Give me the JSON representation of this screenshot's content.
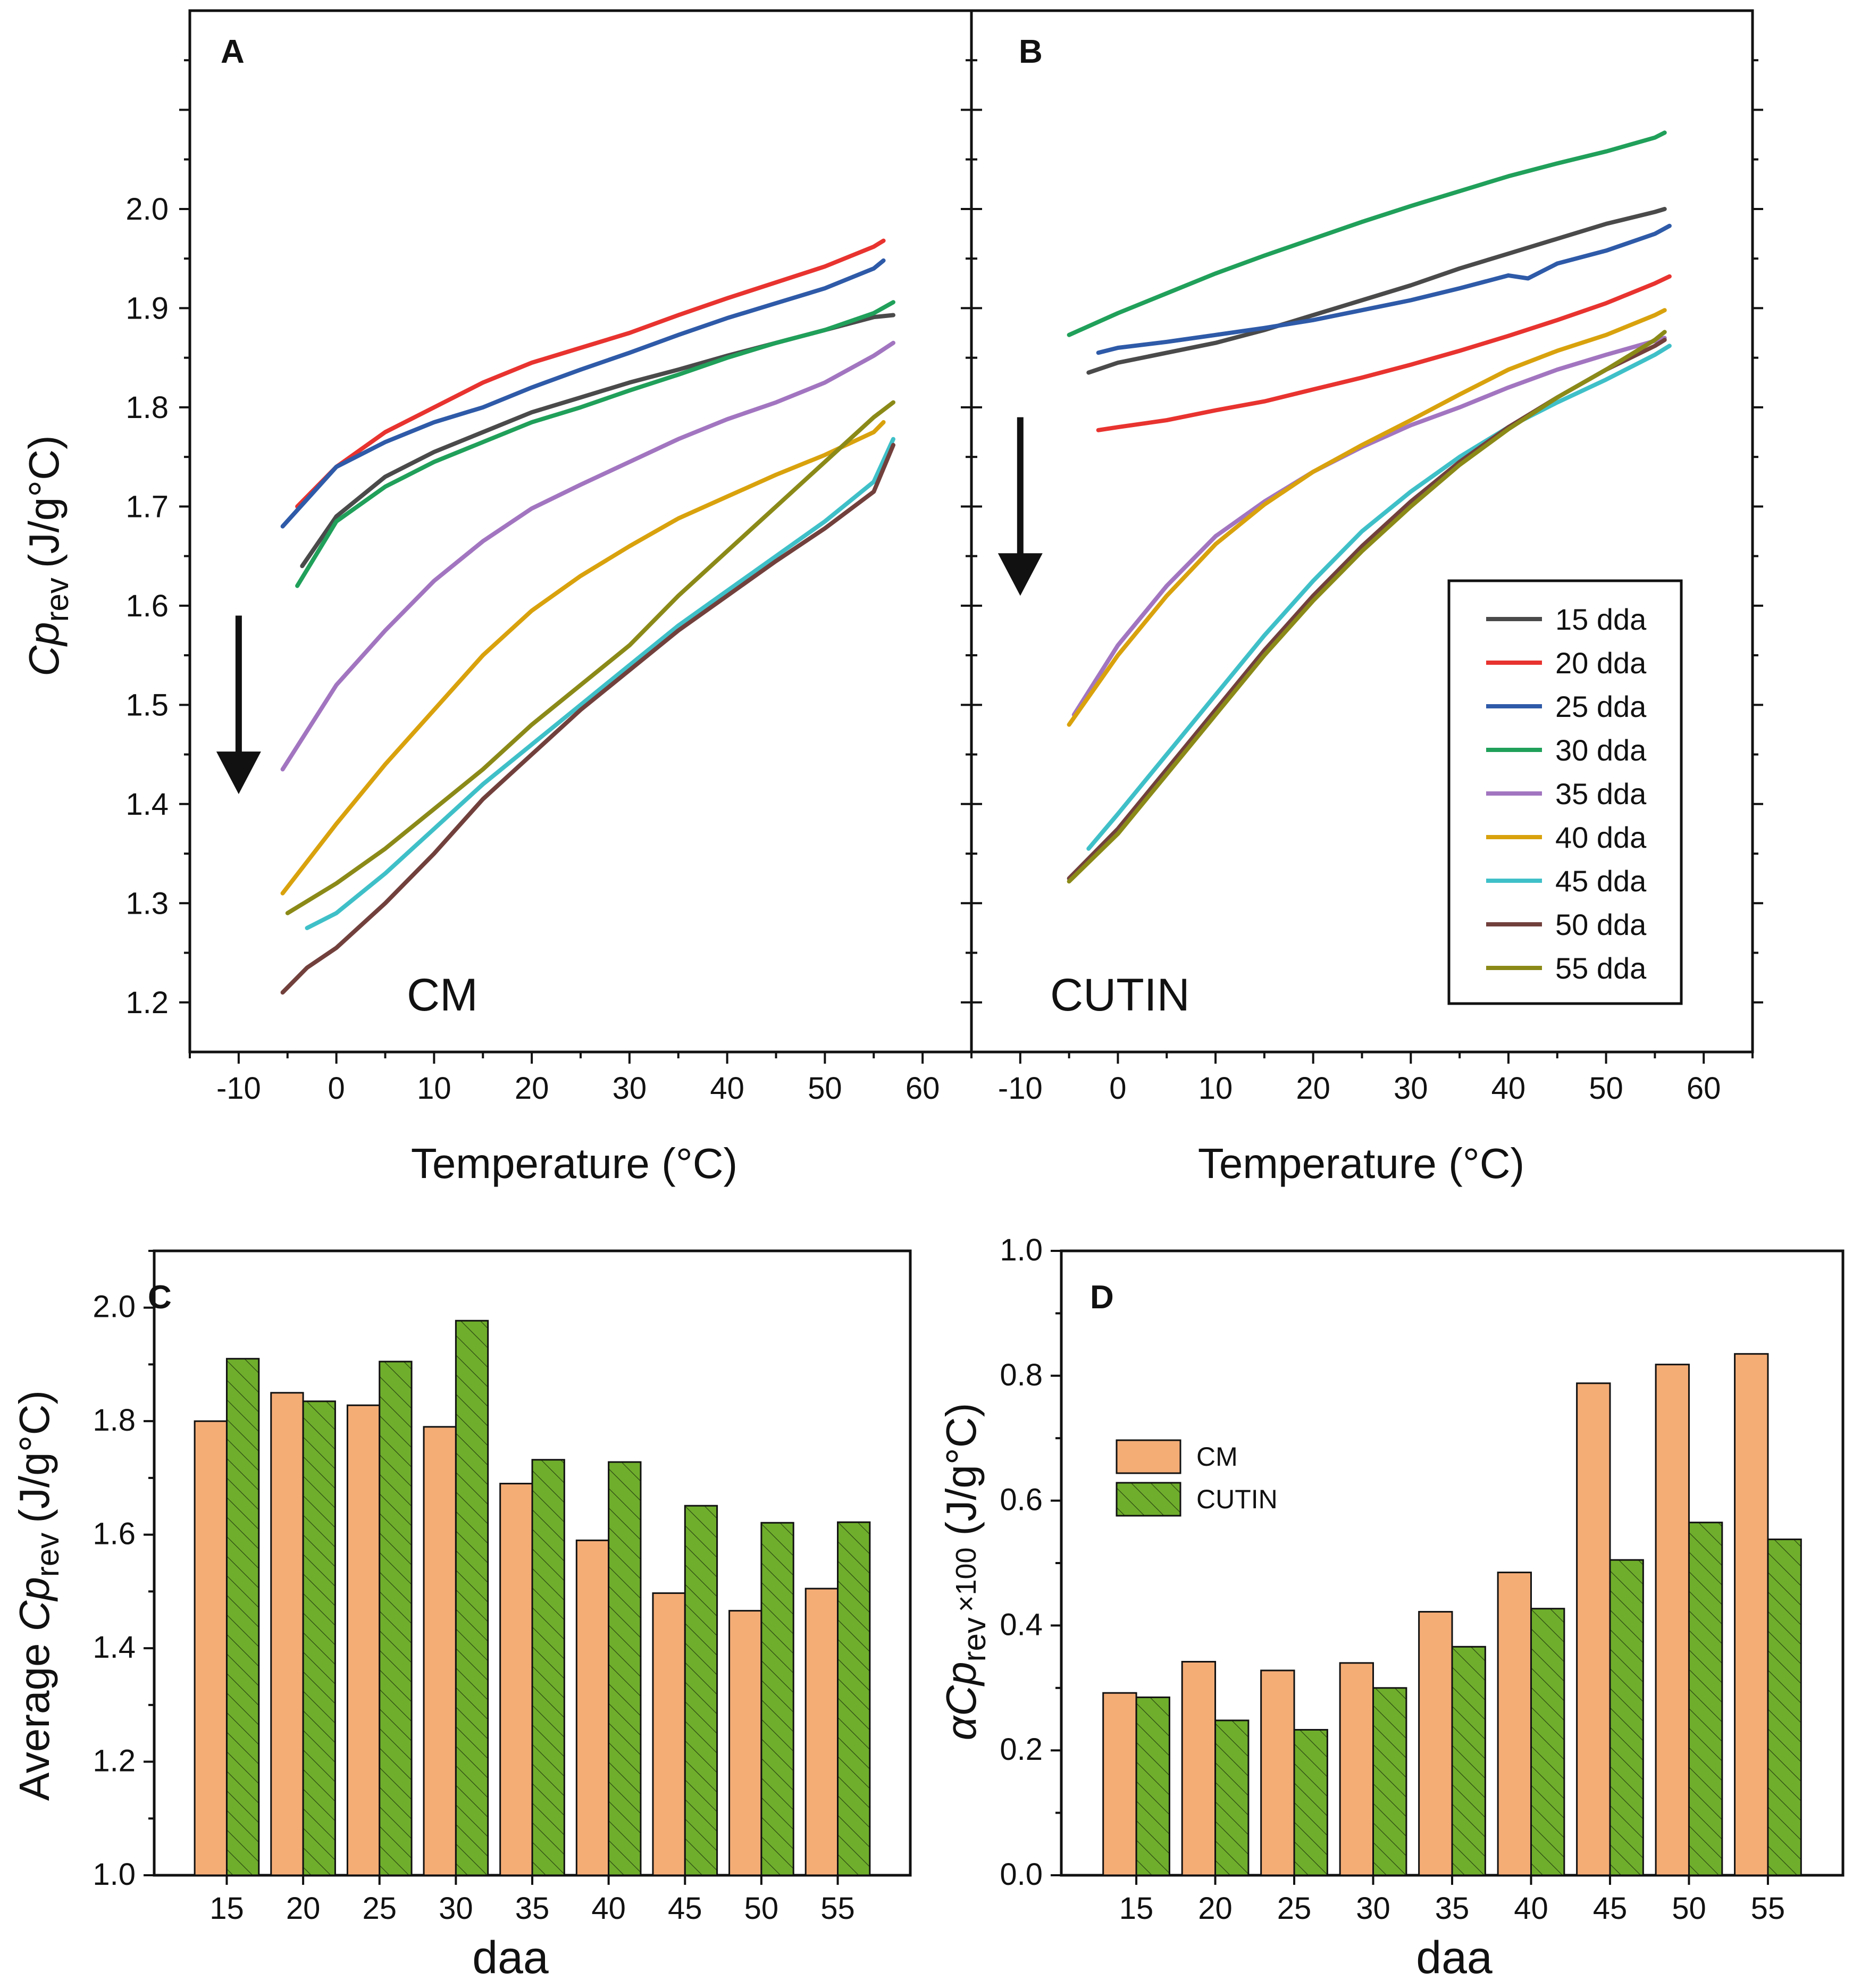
{
  "colors": {
    "15 dda": "#4a4a4a",
    "20 dda": "#e8332f",
    "25 dda": "#2e5aa8",
    "30 dda": "#20a05a",
    "35 dda": "#a275c0",
    "40 dda": "#d9a20d",
    "45 dda": "#3fc0c8",
    "50 dda": "#72403c",
    "55 dda": "#8b8a18",
    "cm_bar": "#f5ad76",
    "cutin_bar": "#6fae2c",
    "axis": "#111111"
  },
  "chart_data": [
    {
      "id": "A",
      "type": "line",
      "panel_label": "A",
      "annotation": "CM",
      "xlabel": "Temperature (°C)",
      "ylabel": "Cp rev (J/g°C)",
      "ylabel_parts": {
        "main": "Cp",
        "sub": "rev",
        "unit": "(J/g°C)"
      },
      "xlim": [
        -15,
        65
      ],
      "ylim": [
        1.15,
        2.2
      ],
      "xticks": [
        -10,
        0,
        10,
        20,
        30,
        40,
        50,
        60
      ],
      "yticks": [
        1.2,
        1.3,
        1.4,
        1.5,
        1.6,
        1.7,
        1.8,
        1.9,
        2.0
      ],
      "arrow": {
        "x": -10,
        "y_from": 1.59,
        "y_to": 1.41
      },
      "series": [
        {
          "name": "15 dda",
          "x": [
            -3.5,
            0,
            5,
            10,
            15,
            20,
            25,
            30,
            35,
            40,
            45,
            50,
            55,
            57
          ],
          "y": [
            1.64,
            1.69,
            1.73,
            1.755,
            1.775,
            1.795,
            1.81,
            1.825,
            1.838,
            1.852,
            1.865,
            1.878,
            1.891,
            1.893
          ]
        },
        {
          "name": "20 dda",
          "x": [
            -4,
            0,
            5,
            10,
            15,
            20,
            25,
            30,
            35,
            40,
            45,
            50,
            55,
            56
          ],
          "y": [
            1.7,
            1.74,
            1.775,
            1.8,
            1.825,
            1.845,
            1.86,
            1.875,
            1.893,
            1.91,
            1.926,
            1.942,
            1.962,
            1.968
          ]
        },
        {
          "name": "25 dda",
          "x": [
            -5.5,
            0,
            5,
            10,
            15,
            20,
            25,
            30,
            35,
            40,
            45,
            50,
            55,
            56
          ],
          "y": [
            1.68,
            1.74,
            1.765,
            1.785,
            1.8,
            1.82,
            1.838,
            1.855,
            1.873,
            1.89,
            1.905,
            1.92,
            1.94,
            1.948
          ]
        },
        {
          "name": "30 dda",
          "x": [
            -4,
            0,
            5,
            10,
            15,
            20,
            25,
            30,
            35,
            40,
            45,
            50,
            55,
            57
          ],
          "y": [
            1.62,
            1.685,
            1.72,
            1.745,
            1.765,
            1.785,
            1.8,
            1.817,
            1.833,
            1.85,
            1.865,
            1.878,
            1.895,
            1.906
          ]
        },
        {
          "name": "35 dda",
          "x": [
            -5.5,
            0,
            5,
            10,
            15,
            20,
            25,
            30,
            35,
            40,
            45,
            50,
            55,
            57
          ],
          "y": [
            1.435,
            1.52,
            1.575,
            1.625,
            1.665,
            1.698,
            1.722,
            1.745,
            1.768,
            1.788,
            1.805,
            1.825,
            1.852,
            1.865
          ]
        },
        {
          "name": "40 dda",
          "x": [
            -5.5,
            0,
            5,
            10,
            15,
            20,
            25,
            30,
            35,
            40,
            45,
            50,
            55,
            56
          ],
          "y": [
            1.31,
            1.38,
            1.44,
            1.495,
            1.55,
            1.595,
            1.63,
            1.66,
            1.688,
            1.71,
            1.732,
            1.752,
            1.775,
            1.785
          ]
        },
        {
          "name": "45 dda",
          "x": [
            -3,
            0,
            5,
            10,
            15,
            20,
            25,
            30,
            35,
            40,
            45,
            50,
            55,
            57
          ],
          "y": [
            1.275,
            1.29,
            1.33,
            1.375,
            1.42,
            1.46,
            1.5,
            1.54,
            1.58,
            1.615,
            1.65,
            1.685,
            1.725,
            1.768
          ]
        },
        {
          "name": "50 dda",
          "x": [
            -5.5,
            -3,
            0,
            5,
            10,
            15,
            20,
            25,
            30,
            35,
            40,
            45,
            50,
            55,
            57
          ],
          "y": [
            1.21,
            1.235,
            1.255,
            1.3,
            1.35,
            1.405,
            1.45,
            1.495,
            1.535,
            1.575,
            1.61,
            1.645,
            1.678,
            1.715,
            1.762
          ]
        },
        {
          "name": "55 dda",
          "x": [
            -5,
            0,
            5,
            10,
            15,
            20,
            25,
            30,
            35,
            40,
            45,
            50,
            55,
            57
          ],
          "y": [
            1.29,
            1.32,
            1.355,
            1.395,
            1.435,
            1.48,
            1.52,
            1.56,
            1.61,
            1.655,
            1.7,
            1.745,
            1.79,
            1.805
          ]
        }
      ]
    },
    {
      "id": "B",
      "type": "line",
      "panel_label": "B",
      "annotation": "CUTIN",
      "xlabel": "Temperature (°C)",
      "xlim": [
        -15,
        65
      ],
      "ylim": [
        1.15,
        2.2
      ],
      "xticks": [
        -10,
        0,
        10,
        20,
        30,
        40,
        50,
        60
      ],
      "arrow": {
        "x": -10,
        "y_from": 1.79,
        "y_to": 1.61
      },
      "legend": [
        "15 dda",
        "20 dda",
        "25 dda",
        "30 dda",
        "35 dda",
        "40 dda",
        "45 dda",
        "50 dda",
        "55 dda"
      ],
      "series": [
        {
          "name": "15 dda",
          "x": [
            -3,
            0,
            5,
            10,
            15,
            20,
            25,
            30,
            35,
            40,
            45,
            50,
            55,
            56
          ],
          "y": [
            1.835,
            1.845,
            1.855,
            1.865,
            1.878,
            1.893,
            1.908,
            1.923,
            1.94,
            1.955,
            1.97,
            1.985,
            1.997,
            2.0
          ]
        },
        {
          "name": "20 dda",
          "x": [
            -2,
            0,
            5,
            10,
            15,
            20,
            25,
            30,
            35,
            40,
            45,
            50,
            55,
            56.5
          ],
          "y": [
            1.777,
            1.78,
            1.787,
            1.797,
            1.806,
            1.818,
            1.83,
            1.843,
            1.857,
            1.872,
            1.888,
            1.905,
            1.925,
            1.932
          ]
        },
        {
          "name": "25 dda",
          "x": [
            -2,
            0,
            5,
            10,
            15,
            20,
            25,
            30,
            35,
            40,
            42,
            45,
            50,
            55,
            56.5
          ],
          "y": [
            1.855,
            1.86,
            1.866,
            1.873,
            1.88,
            1.888,
            1.898,
            1.908,
            1.92,
            1.933,
            1.93,
            1.945,
            1.958,
            1.975,
            1.983
          ]
        },
        {
          "name": "30 dda",
          "x": [
            -5,
            0,
            5,
            10,
            15,
            20,
            25,
            30,
            35,
            40,
            45,
            50,
            55,
            56
          ],
          "y": [
            1.873,
            1.895,
            1.915,
            1.935,
            1.953,
            1.97,
            1.987,
            2.003,
            2.018,
            2.033,
            2.046,
            2.058,
            2.072,
            2.077
          ]
        },
        {
          "name": "35 dda",
          "x": [
            -4.5,
            0,
            5,
            10,
            15,
            20,
            25,
            30,
            35,
            40,
            45,
            50,
            55,
            56
          ],
          "y": [
            1.49,
            1.56,
            1.62,
            1.67,
            1.705,
            1.735,
            1.76,
            1.782,
            1.8,
            1.82,
            1.838,
            1.853,
            1.867,
            1.87
          ]
        },
        {
          "name": "40 dda",
          "x": [
            -5,
            0,
            5,
            10,
            15,
            20,
            25,
            30,
            35,
            40,
            45,
            50,
            55,
            56
          ],
          "y": [
            1.48,
            1.55,
            1.61,
            1.662,
            1.702,
            1.735,
            1.762,
            1.787,
            1.813,
            1.838,
            1.857,
            1.873,
            1.893,
            1.898
          ]
        },
        {
          "name": "45 dda",
          "x": [
            -3,
            0,
            5,
            10,
            15,
            20,
            25,
            30,
            35,
            40,
            45,
            50,
            55,
            56.5
          ],
          "y": [
            1.355,
            1.39,
            1.45,
            1.51,
            1.57,
            1.625,
            1.675,
            1.715,
            1.75,
            1.78,
            1.805,
            1.828,
            1.853,
            1.862
          ]
        },
        {
          "name": "50 dda",
          "x": [
            -5,
            0,
            5,
            10,
            15,
            20,
            25,
            30,
            35,
            40,
            45,
            50,
            55,
            56
          ],
          "y": [
            1.325,
            1.375,
            1.435,
            1.495,
            1.555,
            1.61,
            1.66,
            1.705,
            1.745,
            1.78,
            1.81,
            1.838,
            1.862,
            1.868
          ]
        },
        {
          "name": "55 dda",
          "x": [
            -5,
            0,
            5,
            10,
            15,
            20,
            25,
            30,
            35,
            40,
            45,
            50,
            55,
            56
          ],
          "y": [
            1.322,
            1.37,
            1.43,
            1.49,
            1.55,
            1.605,
            1.655,
            1.7,
            1.742,
            1.778,
            1.81,
            1.838,
            1.868,
            1.876
          ]
        }
      ]
    },
    {
      "id": "C",
      "type": "bar",
      "panel_label": "C",
      "xlabel": "daa",
      "ylabel_parts": {
        "pre": "Average ",
        "main": "Cp",
        "sub": "rev",
        "unit": "(J/g°C)"
      },
      "categories": [
        "15",
        "20",
        "25",
        "30",
        "35",
        "40",
        "45",
        "50",
        "55"
      ],
      "ylim": [
        1.0,
        2.1
      ],
      "yticks": [
        1.0,
        1.2,
        1.4,
        1.6,
        1.8,
        2.0
      ],
      "yticklabels": [
        "1.0",
        "1.2",
        "1.4",
        "1.6",
        "1.8",
        "2.0"
      ],
      "series": [
        {
          "name": "CM",
          "values": [
            1.8,
            1.85,
            1.828,
            1.79,
            1.69,
            1.59,
            1.497,
            1.466,
            1.505
          ]
        },
        {
          "name": "CUTIN",
          "values": [
            1.91,
            1.835,
            1.905,
            1.977,
            1.732,
            1.728,
            1.651,
            1.621,
            1.622
          ]
        }
      ]
    },
    {
      "id": "D",
      "type": "bar",
      "panel_label": "D",
      "xlabel": "daa",
      "ylabel_parts": {
        "alpha": "α",
        "main": "Cp",
        "sub": "rev",
        "times": "×100",
        "unit": "(J/g°C)"
      },
      "categories": [
        "15",
        "20",
        "25",
        "30",
        "35",
        "40",
        "45",
        "50",
        "55"
      ],
      "ylim": [
        0.0,
        1.0
      ],
      "yticks": [
        0.0,
        0.2,
        0.4,
        0.6,
        0.8,
        1.0
      ],
      "yticklabels": [
        "0.0",
        "0.2",
        "0.4",
        "0.6",
        "0.8",
        "1.0"
      ],
      "legend": [
        "CM",
        "CUTIN"
      ],
      "series": [
        {
          "name": "CM",
          "values": [
            0.292,
            0.342,
            0.328,
            0.34,
            0.422,
            0.485,
            0.788,
            0.818,
            0.835
          ]
        },
        {
          "name": "CUTIN",
          "values": [
            0.285,
            0.248,
            0.233,
            0.3,
            0.366,
            0.427,
            0.505,
            0.565,
            0.538
          ]
        }
      ]
    }
  ]
}
